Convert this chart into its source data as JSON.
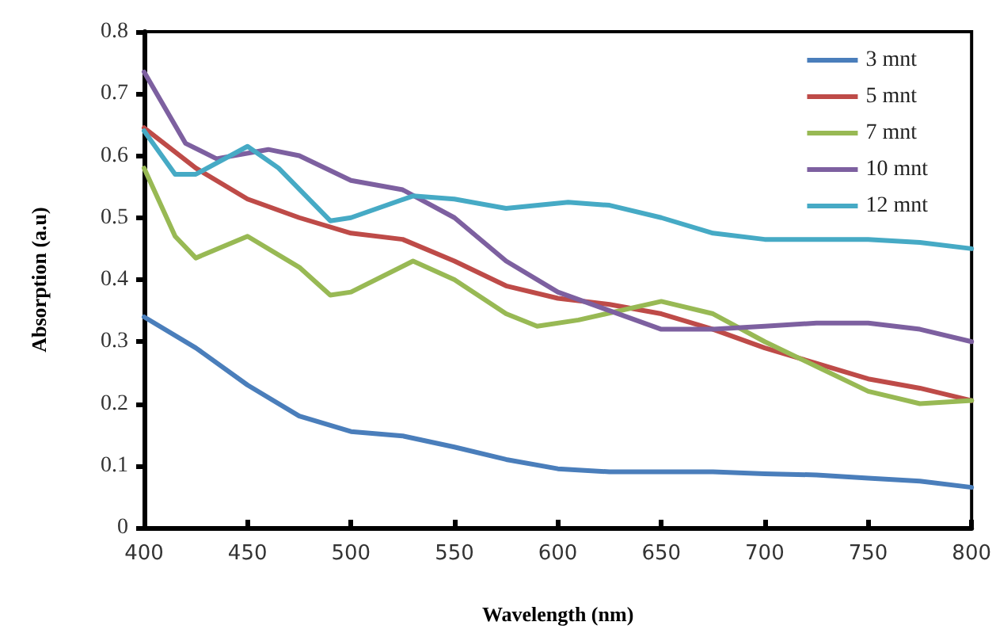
{
  "chart_data": {
    "type": "line",
    "xlabel": "Wavelength (nm)",
    "ylabel": "Absorption (a.u)",
    "xlim": [
      400,
      800
    ],
    "xticks": [
      400,
      450,
      500,
      550,
      600,
      650,
      700,
      750,
      800
    ],
    "ylim": [
      0,
      0.8
    ],
    "yticks": [
      0,
      0.1,
      0.2,
      0.3,
      0.4,
      0.5,
      0.6,
      0.7,
      0.8
    ],
    "grid": false,
    "legend": "top right",
    "marker": "none",
    "line_style": "solid",
    "series": [
      {
        "name": "3 mnt",
        "color": "#4a7ebb",
        "x": [
          400,
          425,
          450,
          475,
          500,
          525,
          550,
          575,
          600,
          625,
          650,
          675,
          700,
          725,
          750,
          775,
          800
        ],
        "values": [
          0.34,
          0.29,
          0.23,
          0.18,
          0.155,
          0.148,
          0.13,
          0.11,
          0.095,
          0.09,
          0.09,
          0.09,
          0.087,
          0.085,
          0.08,
          0.075,
          0.065
        ]
      },
      {
        "name": "5 mnt",
        "color": "#be4b48",
        "x": [
          400,
          425,
          450,
          475,
          500,
          525,
          550,
          575,
          600,
          625,
          650,
          675,
          700,
          725,
          750,
          775,
          800
        ],
        "values": [
          0.645,
          0.58,
          0.53,
          0.5,
          0.475,
          0.465,
          0.43,
          0.39,
          0.37,
          0.36,
          0.345,
          0.32,
          0.29,
          0.265,
          0.24,
          0.225,
          0.205
        ]
      },
      {
        "name": "7 mnt",
        "color": "#98b954",
        "x": [
          400,
          415,
          425,
          450,
          475,
          490,
          500,
          530,
          550,
          575,
          590,
          610,
          650,
          675,
          700,
          725,
          750,
          775,
          800
        ],
        "values": [
          0.58,
          0.47,
          0.435,
          0.47,
          0.42,
          0.375,
          0.38,
          0.43,
          0.4,
          0.345,
          0.325,
          0.335,
          0.365,
          0.345,
          0.3,
          0.26,
          0.22,
          0.2,
          0.205
        ]
      },
      {
        "name": "10 mnt",
        "color": "#7d60a0",
        "x": [
          400,
          420,
          435,
          460,
          475,
          500,
          525,
          550,
          575,
          600,
          625,
          650,
          675,
          700,
          725,
          750,
          775,
          800
        ],
        "values": [
          0.735,
          0.62,
          0.595,
          0.61,
          0.6,
          0.56,
          0.545,
          0.5,
          0.43,
          0.38,
          0.35,
          0.32,
          0.32,
          0.325,
          0.33,
          0.33,
          0.32,
          0.3
        ]
      },
      {
        "name": "12 mnt",
        "color": "#46aac5",
        "x": [
          400,
          415,
          425,
          450,
          465,
          490,
          500,
          530,
          550,
          575,
          605,
          625,
          650,
          675,
          700,
          725,
          750,
          775,
          800
        ],
        "values": [
          0.64,
          0.57,
          0.57,
          0.615,
          0.58,
          0.495,
          0.5,
          0.535,
          0.53,
          0.515,
          0.525,
          0.52,
          0.5,
          0.475,
          0.465,
          0.465,
          0.465,
          0.46,
          0.45
        ]
      }
    ]
  }
}
